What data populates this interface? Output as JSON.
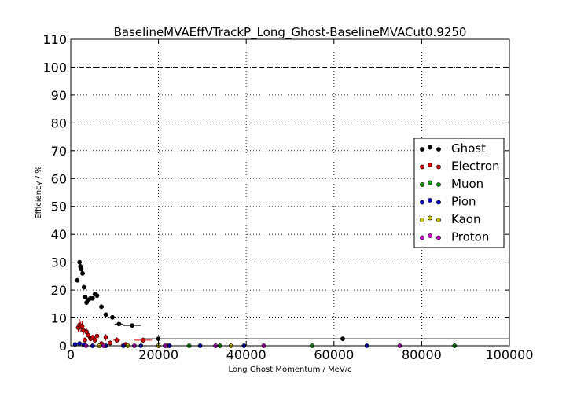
{
  "chart_data": {
    "type": "scatter",
    "title": "BaselineMVAEffVTrackP_Long_Ghost-BaselineMVACut0.9250",
    "xlabel": "Long Ghost Momentum / MeV/c",
    "ylabel": "Efficiency / %",
    "xlim": [
      0,
      100000
    ],
    "ylim": [
      0,
      110
    ],
    "xticks": [
      0,
      20000,
      40000,
      60000,
      80000,
      100000
    ],
    "xtick_labels": [
      "0",
      "20000",
      "40000",
      "60000",
      "80000",
      "100000"
    ],
    "yticks": [
      0,
      10,
      20,
      30,
      40,
      50,
      60,
      70,
      80,
      90,
      100,
      110
    ],
    "ytick_labels": [
      "0",
      "10",
      "20",
      "30",
      "40",
      "50",
      "60",
      "70",
      "80",
      "90",
      "100",
      "110"
    ],
    "grid": true,
    "reference_line": 100,
    "legend_position": "right",
    "series": [
      {
        "name": "Ghost",
        "color": "#000000",
        "points": [
          {
            "x": 1500,
            "y": 23.5,
            "yerr": 0.8,
            "xerr": 300
          },
          {
            "x": 2000,
            "y": 30.0,
            "yerr": 0.8,
            "xerr": 200
          },
          {
            "x": 2200,
            "y": 28.5,
            "yerr": 0.8,
            "xerr": 200
          },
          {
            "x": 2400,
            "y": 27.5,
            "yerr": 0.8,
            "xerr": 200
          },
          {
            "x": 2700,
            "y": 26.0,
            "yerr": 0.8,
            "xerr": 200
          },
          {
            "x": 3000,
            "y": 21.0,
            "yerr": 0.8,
            "xerr": 200
          },
          {
            "x": 3300,
            "y": 17.5,
            "yerr": 0.7,
            "xerr": 200
          },
          {
            "x": 3600,
            "y": 15.5,
            "yerr": 0.7,
            "xerr": 200
          },
          {
            "x": 4000,
            "y": 16.5,
            "yerr": 0.7,
            "xerr": 250
          },
          {
            "x": 4500,
            "y": 17.0,
            "yerr": 0.7,
            "xerr": 300
          },
          {
            "x": 5000,
            "y": 17.0,
            "yerr": 0.7,
            "xerr": 300
          },
          {
            "x": 5500,
            "y": 18.5,
            "yerr": 0.7,
            "xerr": 300
          },
          {
            "x": 6000,
            "y": 18.0,
            "yerr": 0.7,
            "xerr": 300
          },
          {
            "x": 7000,
            "y": 14.0,
            "yerr": 0.7,
            "xerr": 400
          },
          {
            "x": 8000,
            "y": 11.2,
            "yerr": 0.6,
            "xerr": 500
          },
          {
            "x": 9500,
            "y": 10.2,
            "yerr": 0.6,
            "xerr": 800
          },
          {
            "x": 11000,
            "y": 7.8,
            "yerr": 0.6,
            "xerr": 1000
          },
          {
            "x": 14000,
            "y": 7.3,
            "yerr": 0.6,
            "xerr": 2000
          },
          {
            "x": 20000,
            "y": 2.5,
            "yerr": 0.5,
            "xerr": 4000
          },
          {
            "x": 62000,
            "y": 2.5,
            "yerr": 0.4,
            "xerr": 38000
          }
        ]
      },
      {
        "name": "Electron",
        "color": "#cc0000",
        "points": [
          {
            "x": 1700,
            "y": 6.5,
            "yerr": 1.5,
            "xerr": 200
          },
          {
            "x": 2000,
            "y": 7.5,
            "yerr": 2.0,
            "xerr": 200
          },
          {
            "x": 2300,
            "y": 6.8,
            "yerr": 1.8,
            "xerr": 200
          },
          {
            "x": 2600,
            "y": 7.0,
            "yerr": 2.0,
            "xerr": 200
          },
          {
            "x": 2900,
            "y": 5.5,
            "yerr": 1.5,
            "xerr": 200
          },
          {
            "x": 3200,
            "y": 2.0,
            "yerr": 1.0,
            "xerr": 200
          },
          {
            "x": 3600,
            "y": 5.0,
            "yerr": 1.5,
            "xerr": 200
          },
          {
            "x": 4000,
            "y": 3.8,
            "yerr": 1.2,
            "xerr": 250
          },
          {
            "x": 4500,
            "y": 2.5,
            "yerr": 1.0,
            "xerr": 300
          },
          {
            "x": 5000,
            "y": 3.0,
            "yerr": 1.0,
            "xerr": 300
          },
          {
            "x": 5500,
            "y": 2.0,
            "yerr": 1.0,
            "xerr": 300
          },
          {
            "x": 6000,
            "y": 3.5,
            "yerr": 1.2,
            "xerr": 300
          },
          {
            "x": 7000,
            "y": 0.8,
            "yerr": 0.8,
            "xerr": 400
          },
          {
            "x": 8000,
            "y": 3.0,
            "yerr": 1.2,
            "xerr": 500
          },
          {
            "x": 9000,
            "y": 1.0,
            "yerr": 0.8,
            "xerr": 600
          },
          {
            "x": 10500,
            "y": 2.0,
            "yerr": 1.0,
            "xerr": 800
          },
          {
            "x": 12500,
            "y": 0.5,
            "yerr": 0.5,
            "xerr": 1000
          },
          {
            "x": 16500,
            "y": 2.0,
            "yerr": 1.0,
            "xerr": 2000
          },
          {
            "x": 22000,
            "y": 0.0,
            "yerr": 0.5,
            "xerr": 3000
          }
        ]
      },
      {
        "name": "Muon",
        "color": "#009900",
        "points": [
          {
            "x": 27000,
            "y": 0.0,
            "yerr": 0.5,
            "xerr": 3000
          },
          {
            "x": 34000,
            "y": 0.0,
            "yerr": 0.5,
            "xerr": 3000
          },
          {
            "x": 55000,
            "y": 0.0,
            "yerr": 0.5,
            "xerr": 5000
          },
          {
            "x": 87500,
            "y": 0.0,
            "yerr": 0.5,
            "xerr": 10000
          }
        ]
      },
      {
        "name": "Pion",
        "color": "#0000cc",
        "points": [
          {
            "x": 1000,
            "y": 0.5,
            "yerr": 0.3,
            "xerr": 300
          },
          {
            "x": 2000,
            "y": 0.8,
            "yerr": 0.4,
            "xerr": 300
          },
          {
            "x": 3000,
            "y": 0.3,
            "yerr": 0.3,
            "xerr": 300
          },
          {
            "x": 5000,
            "y": 0.0,
            "yerr": 0.3,
            "xerr": 500
          },
          {
            "x": 8000,
            "y": 0.0,
            "yerr": 0.3,
            "xerr": 800
          },
          {
            "x": 12000,
            "y": 0.0,
            "yerr": 0.3,
            "xerr": 1000
          },
          {
            "x": 16000,
            "y": 0.0,
            "yerr": 0.3,
            "xerr": 1500
          },
          {
            "x": 22500,
            "y": 0.0,
            "yerr": 0.3,
            "xerr": 2000
          },
          {
            "x": 29500,
            "y": 0.0,
            "yerr": 0.3,
            "xerr": 2500
          },
          {
            "x": 39500,
            "y": 0.0,
            "yerr": 0.3,
            "xerr": 3000
          },
          {
            "x": 67500,
            "y": 0.0,
            "yerr": 0.3,
            "xerr": 5000
          }
        ]
      },
      {
        "name": "Kaon",
        "color": "#cccc00",
        "points": [
          {
            "x": 6500,
            "y": 0.0,
            "yerr": 0.3,
            "xerr": 500
          },
          {
            "x": 13000,
            "y": 0.0,
            "yerr": 0.3,
            "xerr": 1000
          },
          {
            "x": 20000,
            "y": 0.0,
            "yerr": 0.3,
            "xerr": 1500
          },
          {
            "x": 36500,
            "y": 0.0,
            "yerr": 0.3,
            "xerr": 3000
          }
        ]
      },
      {
        "name": "Proton",
        "color": "#cc00cc",
        "points": [
          {
            "x": 3500,
            "y": 0.0,
            "yerr": 0.3,
            "xerr": 300
          },
          {
            "x": 7500,
            "y": 0.0,
            "yerr": 0.3,
            "xerr": 600
          },
          {
            "x": 14500,
            "y": 0.0,
            "yerr": 0.3,
            "xerr": 1000
          },
          {
            "x": 21500,
            "y": 0.0,
            "yerr": 0.3,
            "xerr": 1500
          },
          {
            "x": 33000,
            "y": 0.0,
            "yerr": 0.3,
            "xerr": 2500
          },
          {
            "x": 44000,
            "y": 0.0,
            "yerr": 0.3,
            "xerr": 3000
          },
          {
            "x": 75000,
            "y": 0.0,
            "yerr": 0.3,
            "xerr": 6000
          }
        ]
      }
    ]
  }
}
